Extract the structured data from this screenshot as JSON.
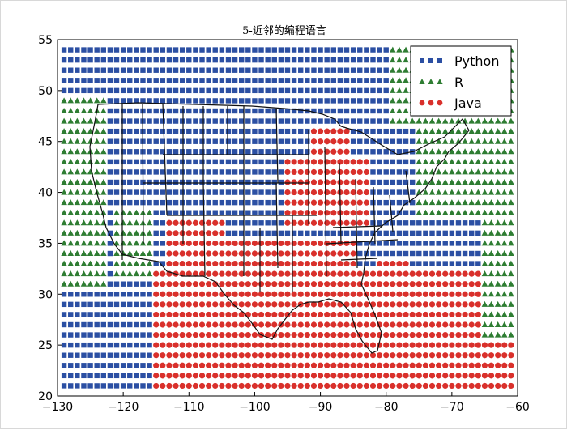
{
  "chart_data": {
    "type": "scatter",
    "title": "5-近邻的编程语言",
    "xlim": [
      -130,
      -60
    ],
    "ylim": [
      20,
      55
    ],
    "xticks": [
      -130,
      -120,
      -110,
      -100,
      -90,
      -80,
      -70,
      -60
    ],
    "yticks": [
      20,
      25,
      30,
      35,
      40,
      45,
      50,
      55
    ],
    "grid": false,
    "legend_position": "top-right",
    "grid_step": 1,
    "series": [
      {
        "name": "Python",
        "marker": "square",
        "color": "#2b4fa3"
      },
      {
        "name": "R",
        "marker": "triangle",
        "color": "#2e7d32"
      },
      {
        "name": "Java",
        "marker": "circle",
        "color": "#d9302b"
      }
    ],
    "region_rules": "Python: upper-center band; R: west and east margins; Java: south-center and inland south region",
    "map": "US state outlines"
  }
}
